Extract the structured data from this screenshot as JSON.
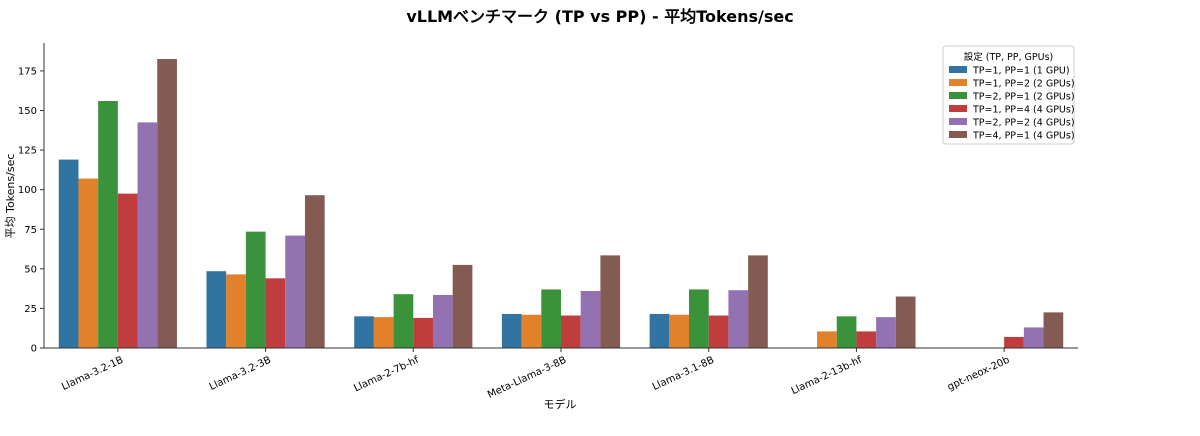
{
  "chart_data": {
    "type": "bar",
    "title": "vLLMベンチマーク (TP vs PP) - 平均Tokens/sec",
    "xlabel": "モデル",
    "ylabel": "平均 Tokens/sec",
    "ylim": [
      0,
      192
    ],
    "yticks": [
      0,
      25,
      50,
      75,
      100,
      125,
      150,
      175
    ],
    "grid": false,
    "legend_position": "top-right",
    "legend_title": "設定 (TP, PP, GPUs)",
    "categories": [
      "Llama-3.2-1B",
      "Llama-3.2-3B",
      "Llama-2-7b-hf",
      "Meta-Llama-3-8B",
      "Llama-3.1-8B",
      "Llama-2-13b-hf",
      "gpt-neox-20b"
    ],
    "series": [
      {
        "name": "TP=1, PP=1 (1 GPU)",
        "color": "#3274a1",
        "values": [
          119,
          48.5,
          20,
          21.5,
          21.5,
          null,
          null
        ]
      },
      {
        "name": "TP=1, PP=2 (2 GPUs)",
        "color": "#e1812c",
        "values": [
          107,
          46.5,
          19.5,
          21,
          21,
          10.5,
          null
        ]
      },
      {
        "name": "TP=2, PP=1 (2 GPUs)",
        "color": "#3a923a",
        "values": [
          156,
          73.5,
          34,
          37,
          37,
          20,
          null
        ]
      },
      {
        "name": "TP=1, PP=4 (4 GPUs)",
        "color": "#c03d3e",
        "values": [
          97.5,
          44,
          19,
          20.5,
          20.5,
          10.5,
          7
        ]
      },
      {
        "name": "TP=2, PP=2 (4 GPUs)",
        "color": "#9372b2",
        "values": [
          142.5,
          71,
          33.5,
          36,
          36.5,
          19.5,
          13
        ]
      },
      {
        "name": "TP=4, PP=1 (4 GPUs)",
        "color": "#845b53",
        "values": [
          182.5,
          96.5,
          52.5,
          58.5,
          58.5,
          32.5,
          22.5
        ]
      }
    ]
  }
}
